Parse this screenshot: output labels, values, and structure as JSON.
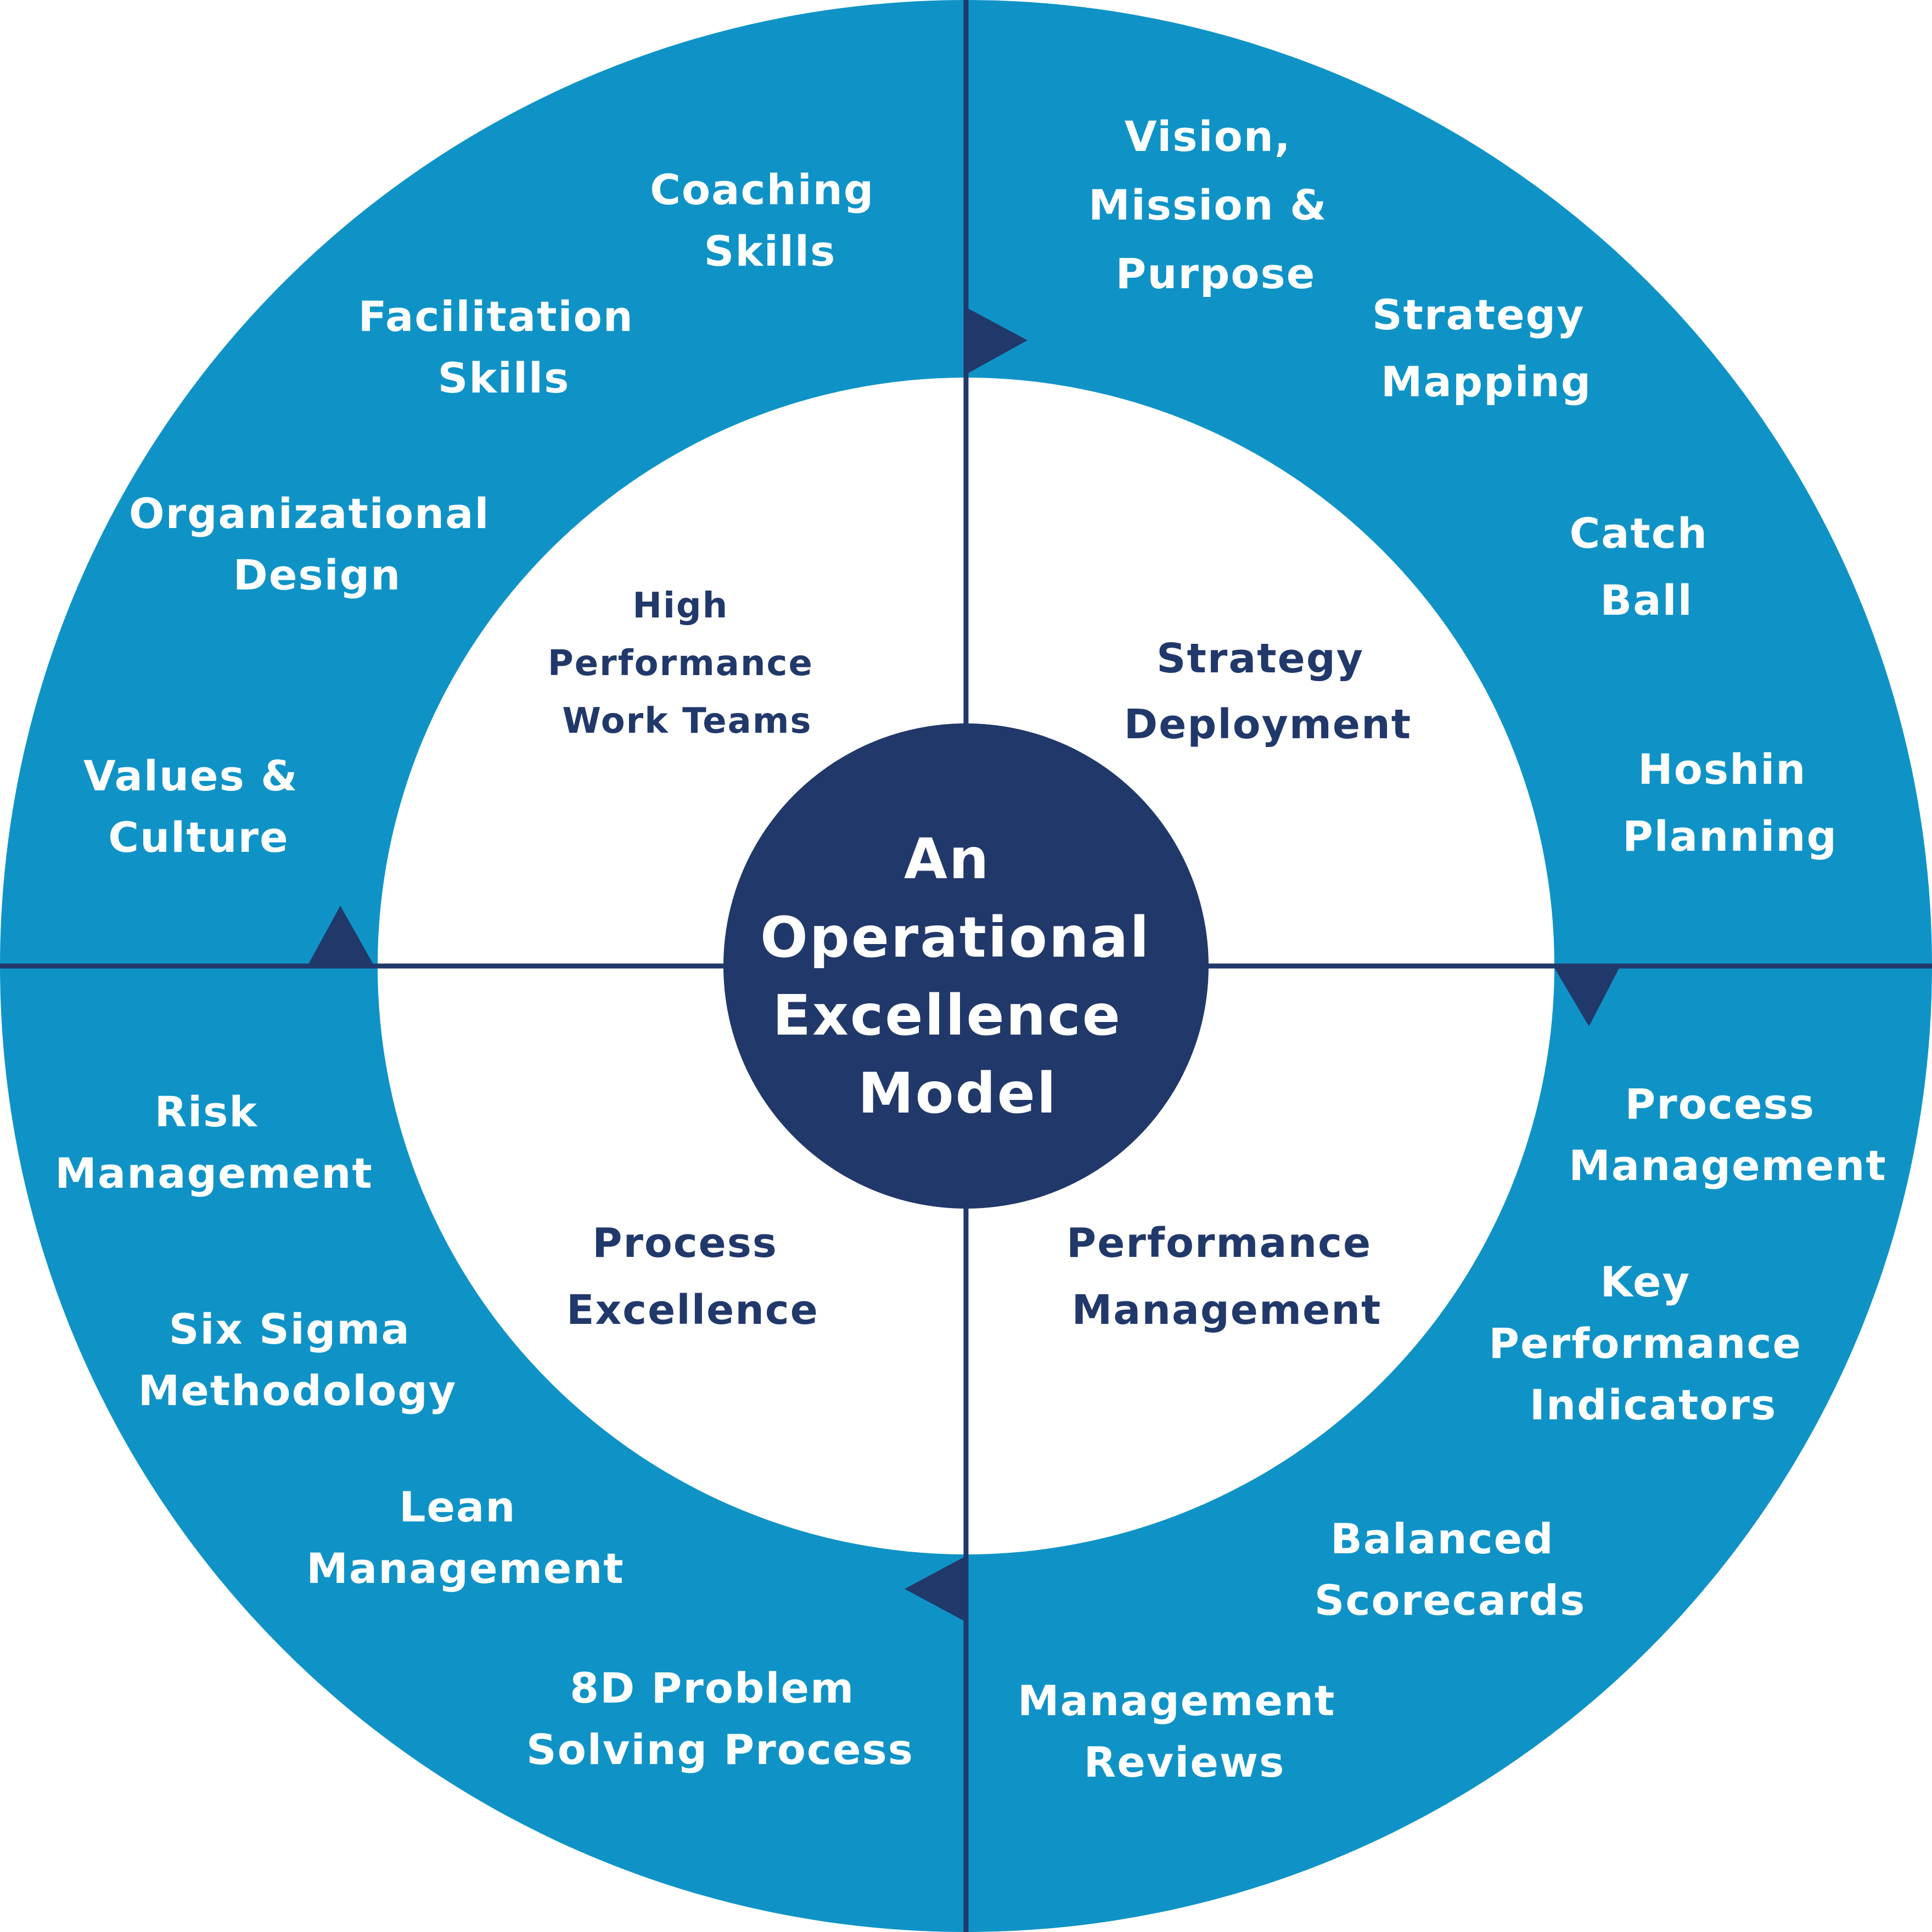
{
  "colors": {
    "outer_ring": "#0f93c7",
    "inner_disc": "#ffffff",
    "hub": "#21386a",
    "divider": "#21386a",
    "outer_text": "#ffffff",
    "inner_text": "#21386a",
    "hub_text": "#ffffff"
  },
  "center": {
    "lines": [
      "An",
      "Operational",
      "Excellence",
      "Model"
    ]
  },
  "quadrants": [
    {
      "name": "top-left",
      "inner": {
        "lines": [
          "High",
          "Performance",
          "Work Teams"
        ]
      },
      "outer_items": [
        {
          "lines": [
            "Coaching",
            "Skills"
          ]
        },
        {
          "lines": [
            "Facilitation",
            "Skills"
          ]
        },
        {
          "lines": [
            "Organizational",
            "Design"
          ]
        },
        {
          "lines": [
            "Values &",
            "Culture"
          ]
        }
      ]
    },
    {
      "name": "top-right",
      "inner": {
        "lines": [
          "Strategy",
          "Deployment"
        ]
      },
      "outer_items": [
        {
          "lines": [
            "Vision,",
            "Mission &",
            "Purpose"
          ]
        },
        {
          "lines": [
            "Strategy",
            "Mapping"
          ]
        },
        {
          "lines": [
            "Catch",
            "Ball"
          ]
        },
        {
          "lines": [
            "Hoshin",
            "Planning"
          ]
        }
      ]
    },
    {
      "name": "bottom-right",
      "inner": {
        "lines": [
          "Performance",
          "Management"
        ]
      },
      "outer_items": [
        {
          "lines": [
            "Process",
            "Management"
          ]
        },
        {
          "lines": [
            "Key",
            "Performance",
            "Indicators"
          ]
        },
        {
          "lines": [
            "Balanced",
            "Scorecards"
          ]
        },
        {
          "lines": [
            "Management",
            "Reviews"
          ]
        }
      ]
    },
    {
      "name": "bottom-left",
      "inner": {
        "lines": [
          "Process",
          "Excellence"
        ]
      },
      "outer_items": [
        {
          "lines": [
            "Risk",
            "Management"
          ]
        },
        {
          "lines": [
            "Six Sigma",
            "Methodology"
          ]
        },
        {
          "lines": [
            "Lean",
            "Management"
          ]
        },
        {
          "lines": [
            "8D Problem",
            "Solving Process"
          ]
        }
      ]
    }
  ]
}
